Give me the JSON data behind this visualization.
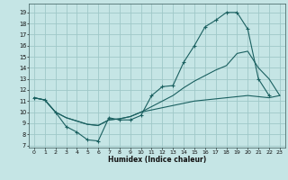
{
  "xlabel": "Humidex (Indice chaleur)",
  "bg_color": "#c5e5e5",
  "grid_color": "#9fc8c8",
  "line_color": "#1a6060",
  "xlim": [
    -0.5,
    23.5
  ],
  "ylim": [
    6.8,
    19.8
  ],
  "xticks": [
    0,
    1,
    2,
    3,
    4,
    5,
    6,
    7,
    8,
    9,
    10,
    11,
    12,
    13,
    14,
    15,
    16,
    17,
    18,
    19,
    20,
    21,
    22,
    23
  ],
  "yticks": [
    7,
    8,
    9,
    10,
    11,
    12,
    13,
    14,
    15,
    16,
    17,
    18,
    19
  ],
  "curve1_x": [
    0,
    1,
    2,
    3,
    4,
    5,
    6,
    7,
    8,
    9,
    10,
    11,
    12,
    13,
    14,
    15,
    16,
    17,
    18,
    19,
    20,
    21,
    22
  ],
  "curve1_y": [
    11.3,
    11.1,
    10.0,
    8.7,
    8.2,
    7.5,
    7.4,
    9.5,
    9.3,
    9.3,
    9.7,
    11.5,
    12.3,
    12.4,
    14.5,
    16.0,
    17.7,
    18.3,
    19.0,
    19.0,
    17.5,
    13.0,
    11.5
  ],
  "curve2_x": [
    0,
    1,
    2,
    3,
    4,
    5,
    6,
    7,
    8,
    9,
    10,
    11,
    12,
    13,
    14,
    15,
    16,
    17,
    18,
    19,
    20,
    21,
    22,
    23
  ],
  "curve2_y": [
    11.3,
    11.1,
    10.0,
    9.5,
    9.2,
    8.9,
    8.8,
    9.3,
    9.4,
    9.6,
    10.0,
    10.5,
    11.0,
    11.5,
    12.2,
    12.8,
    13.3,
    13.8,
    14.2,
    15.3,
    15.5,
    14.0,
    13.0,
    11.5
  ],
  "curve3_x": [
    0,
    1,
    2,
    3,
    4,
    5,
    6,
    7,
    8,
    9,
    10,
    11,
    12,
    13,
    14,
    15,
    16,
    17,
    18,
    19,
    20,
    21,
    22,
    23
  ],
  "curve3_y": [
    11.3,
    11.1,
    10.0,
    9.5,
    9.2,
    8.9,
    8.8,
    9.3,
    9.4,
    9.6,
    10.0,
    10.2,
    10.4,
    10.6,
    10.8,
    11.0,
    11.1,
    11.2,
    11.3,
    11.4,
    11.5,
    11.4,
    11.3,
    11.5
  ]
}
